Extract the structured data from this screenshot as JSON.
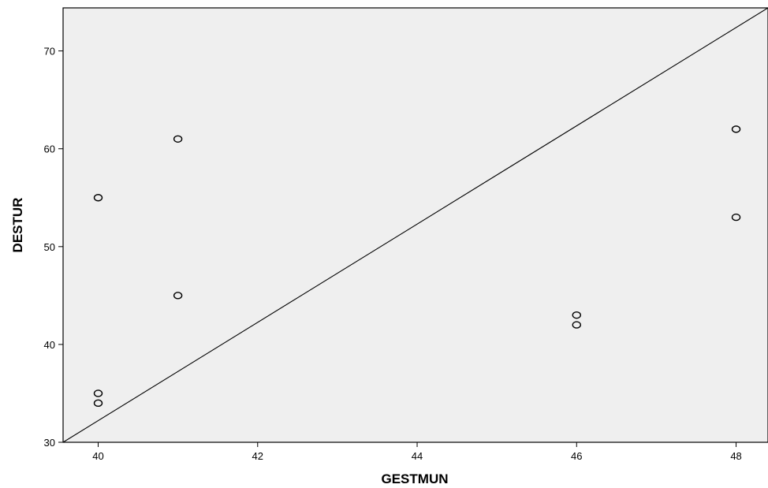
{
  "chart_data": {
    "type": "scatter",
    "title": "",
    "xlabel": "GESTMUN",
    "ylabel": "DESTUR",
    "xlim": [
      39.56,
      48.4
    ],
    "ylim": [
      30,
      74.4
    ],
    "x_ticks": [
      40,
      42,
      44,
      46,
      48
    ],
    "y_ticks": [
      30,
      40,
      50,
      60,
      70
    ],
    "grid": false,
    "legend": "none",
    "colors": {
      "plot_bg": "#efefef",
      "marker": "#000000",
      "line": "#000000"
    },
    "points": [
      {
        "x": 40,
        "y": 55
      },
      {
        "x": 40,
        "y": 35
      },
      {
        "x": 40,
        "y": 34
      },
      {
        "x": 41,
        "y": 61
      },
      {
        "x": 41,
        "y": 45
      },
      {
        "x": 46,
        "y": 43
      },
      {
        "x": 46,
        "y": 42
      },
      {
        "x": 48,
        "y": 62
      },
      {
        "x": 48,
        "y": 53
      }
    ],
    "reference_line": {
      "from": {
        "x": 39.56,
        "y": 30
      },
      "to": {
        "x": 48.4,
        "y": 74.4
      }
    }
  }
}
